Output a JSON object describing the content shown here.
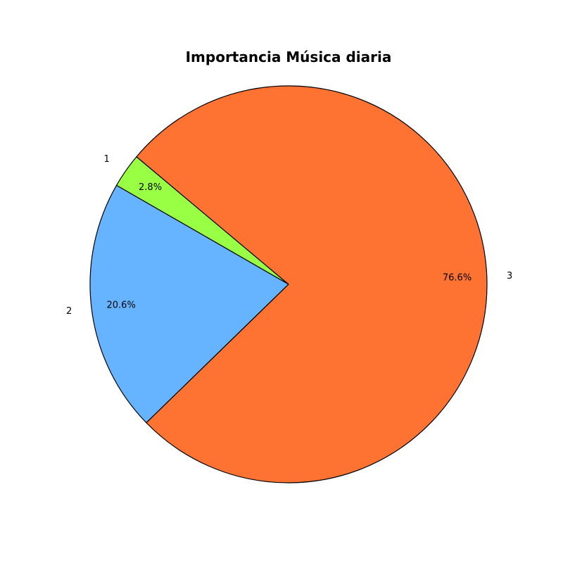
{
  "chart_data": {
    "type": "pie",
    "title": "Importancia Música diaria",
    "categories": [
      "1",
      "2",
      "3"
    ],
    "values": [
      2.8,
      20.6,
      76.6
    ],
    "percent_labels": [
      "2.8%",
      "20.6%",
      "76.6%"
    ],
    "colors": [
      "#99ff44",
      "#66b3ff",
      "#ff7332"
    ],
    "edge_color": "#000000",
    "legend": "none"
  }
}
